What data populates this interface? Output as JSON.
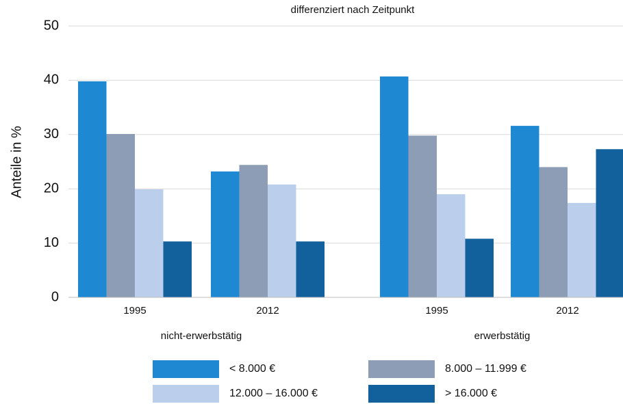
{
  "chart_data": {
    "type": "bar",
    "subtitle": "differenziert nach Zeitpunkt",
    "y_label": "Anteile in %",
    "categories": [
      "1995",
      "2012",
      "1995",
      "2012"
    ],
    "groups": [
      "nicht-erwerbstätig",
      "erwerbstätig"
    ],
    "series": [
      {
        "name": "< 8.000 €",
        "color": "#1f88d2",
        "values": [
          39.8,
          23.2,
          40.7,
          31.6
        ]
      },
      {
        "name": "8.000 – 11.999 €",
        "color": "#8d9db5",
        "values": [
          30.1,
          24.4,
          29.8,
          24.0
        ]
      },
      {
        "name": "12.000 – 16.000 €",
        "color": "#bbcfec",
        "values": [
          19.9,
          20.8,
          19.0,
          17.4
        ]
      },
      {
        "name": "> 16.000 €",
        "color": "#12619c",
        "values": [
          10.3,
          10.3,
          10.8,
          27.3
        ]
      }
    ],
    "ylim": [
      0,
      50
    ],
    "yticks": [
      0,
      10,
      20,
      30,
      40,
      50
    ],
    "grid": true
  }
}
